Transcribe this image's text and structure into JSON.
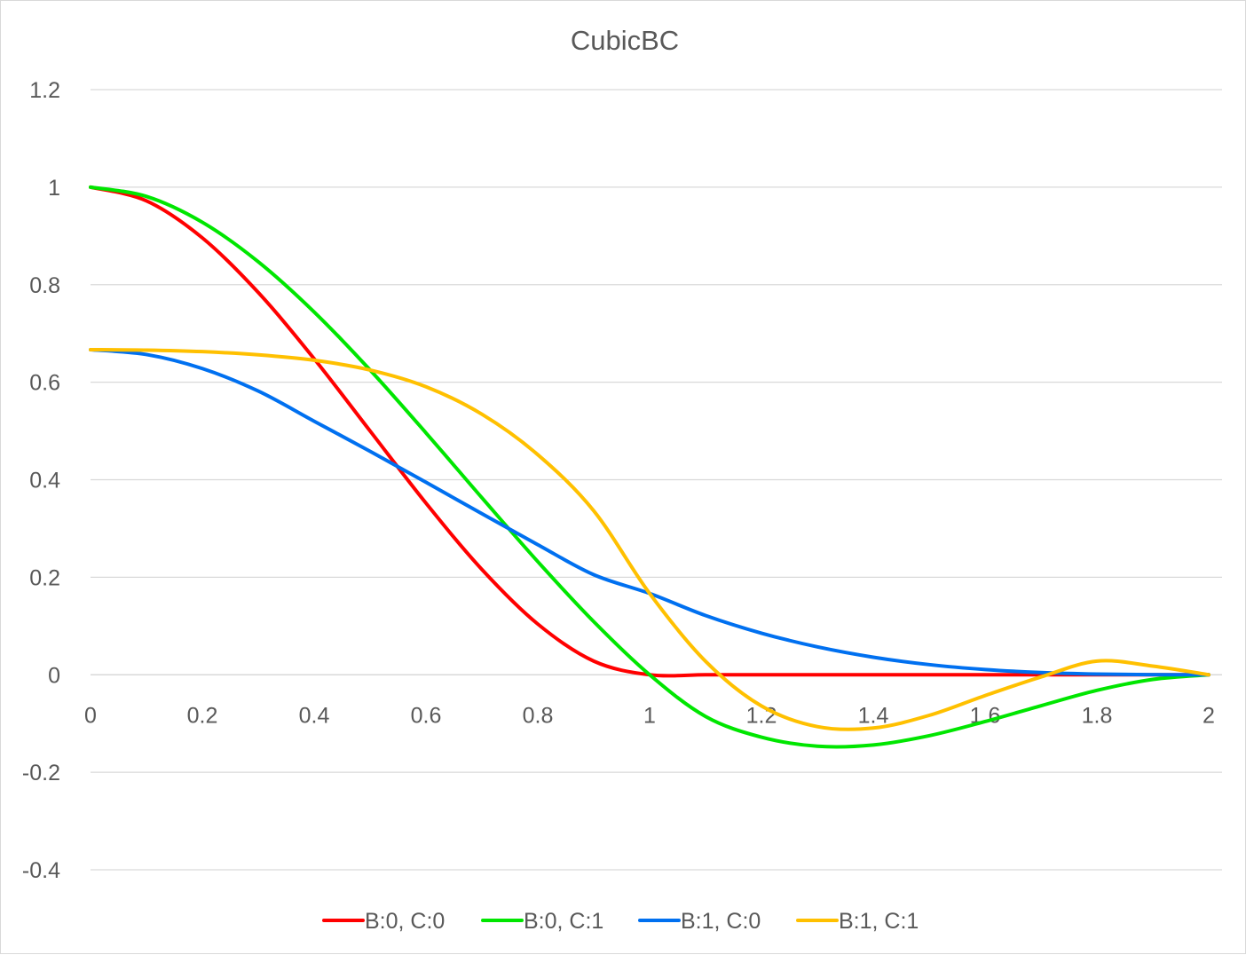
{
  "chart_data": {
    "type": "line",
    "title": "CubicBC",
    "xlabel": "",
    "ylabel": "",
    "xlim": [
      0,
      2
    ],
    "ylim": [
      -0.4,
      1.2
    ],
    "x_ticks": [
      0,
      0.2,
      0.4,
      0.6,
      0.8,
      1,
      1.2,
      1.4,
      1.6,
      1.8,
      2
    ],
    "x_tick_labels": [
      "0",
      "0.2",
      "0.4",
      "0.6",
      "0.8",
      "1",
      "1.2",
      "1.4",
      "1.6",
      "1.8",
      "2"
    ],
    "y_ticks": [
      -0.4,
      -0.2,
      0,
      0.2,
      0.4,
      0.6,
      0.8,
      1,
      1.2
    ],
    "y_tick_labels": [
      "-0.4",
      "-0.2",
      "0",
      "0.2",
      "0.4",
      "0.6",
      "0.8",
      "1",
      "1.2"
    ],
    "grid": "horizontal",
    "legend_position": "bottom",
    "x": [
      0,
      0.1,
      0.2,
      0.3,
      0.4,
      0.5,
      0.6,
      0.7,
      0.8,
      0.9,
      1,
      1.1,
      1.2,
      1.3,
      1.4,
      1.5,
      1.6,
      1.7,
      1.8,
      1.9,
      2
    ],
    "series": [
      {
        "name": "B:0, C:0",
        "color": "#ff0000",
        "values": [
          1,
          0.972,
          0.896,
          0.784,
          0.648,
          0.5,
          0.352,
          0.216,
          0.104,
          0.028,
          0,
          0,
          0,
          0,
          0,
          0,
          0,
          0,
          0,
          0,
          0
        ]
      },
      {
        "name": "B:0, C:1",
        "color": "#00e600",
        "values": [
          1,
          0.981,
          0.928,
          0.847,
          0.744,
          0.625,
          0.496,
          0.363,
          0.232,
          0.109,
          0,
          -0.0855,
          -0.128,
          -0.1465,
          -0.144,
          -0.125,
          -0.096,
          -0.0635,
          -0.032,
          -0.0095,
          0
        ]
      },
      {
        "name": "B:1, C:0",
        "color": "#0070f0",
        "values": [
          0.6667,
          0.6568,
          0.628,
          0.5818,
          0.52,
          0.4583,
          0.3947,
          0.3303,
          0.2667,
          0.2052,
          0.1667,
          0.1215,
          0.0853,
          0.0572,
          0.036,
          0.0208,
          0.0107,
          0.0045,
          0.0013,
          0.0002,
          0
        ]
      },
      {
        "name": "B:1, C:1",
        "color": "#ffc000",
        "values": [
          0.6667,
          0.6658,
          0.6627,
          0.6562,
          0.645,
          0.625,
          0.5907,
          0.5343,
          0.4513,
          0.3363,
          0.1667,
          0.0277,
          -0.064,
          -0.1063,
          -0.1093,
          -0.0833,
          -0.0427,
          -0.0045,
          0.028,
          0.0178,
          0
        ]
      }
    ]
  }
}
